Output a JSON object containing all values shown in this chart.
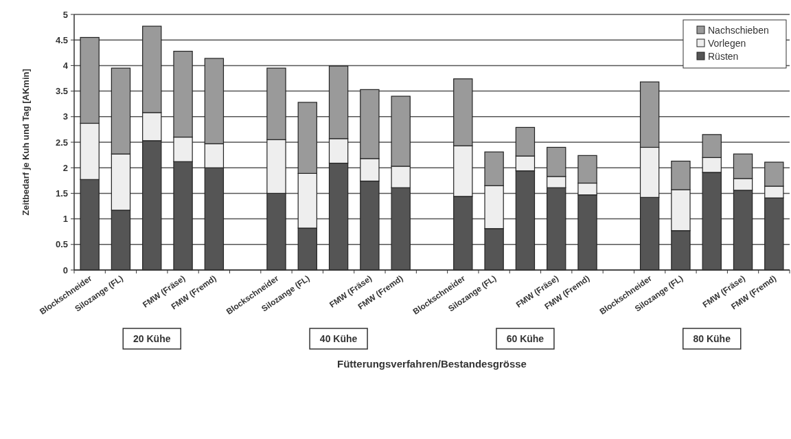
{
  "chart_data": {
    "type": "bar",
    "stacked": true,
    "categories": [
      "Blockschneider",
      "Silozange (FL)",
      null,
      "FMW (Fräse)",
      "FMW (Fremd)",
      null,
      "Blockschneider",
      "Silozange (FL)",
      null,
      "FMW (Fräse)",
      "FMW (Fremd)",
      null,
      "Blockschneider",
      "Silozange (FL)",
      null,
      "FMW (Fräse)",
      "FMW (Fremd)",
      null,
      "Blockschneider",
      "Silozange (FL)",
      null,
      "FMW (Fräse)",
      "FMW (Fremd)"
    ],
    "series": [
      {
        "name": "Rüsten",
        "color": "#555555",
        "values": [
          1.77,
          1.17,
          2.53,
          2.12,
          2.0,
          null,
          1.5,
          0.82,
          2.09,
          1.74,
          1.61,
          null,
          1.44,
          0.81,
          1.94,
          1.61,
          1.47,
          null,
          1.42,
          0.77,
          1.91,
          1.56,
          1.41
        ]
      },
      {
        "name": "Vorlegen",
        "color": "#eeeeee",
        "values": [
          1.1,
          1.1,
          0.55,
          0.48,
          0.47,
          null,
          1.05,
          1.07,
          0.48,
          0.44,
          0.42,
          null,
          0.99,
          0.84,
          0.29,
          0.22,
          0.23,
          null,
          0.98,
          0.8,
          0.29,
          0.23,
          0.23
        ]
      },
      {
        "name": "Nachschieben",
        "color": "#9a9a9a",
        "values": [
          1.68,
          1.68,
          1.69,
          1.68,
          1.67,
          null,
          1.4,
          1.39,
          1.42,
          1.35,
          1.37,
          null,
          1.31,
          0.66,
          0.56,
          0.57,
          0.54,
          null,
          1.28,
          0.56,
          0.45,
          0.48,
          0.47
        ]
      }
    ],
    "ylim": [
      0,
      5
    ],
    "yticks": [
      0,
      0.5,
      1,
      1.5,
      2,
      2.5,
      3,
      3.5,
      4,
      4.5,
      5
    ],
    "grid": "y",
    "legend": "top right",
    "ylabel": "Zeitbedarf je Kuh und Tag [AKmin]",
    "xlabel": "Fütterungsverfahren/Bestandesgrösse",
    "annotations": [
      "20 Kühe",
      "40 Kühe",
      "60 Kühe",
      "80 Kühe"
    ]
  }
}
